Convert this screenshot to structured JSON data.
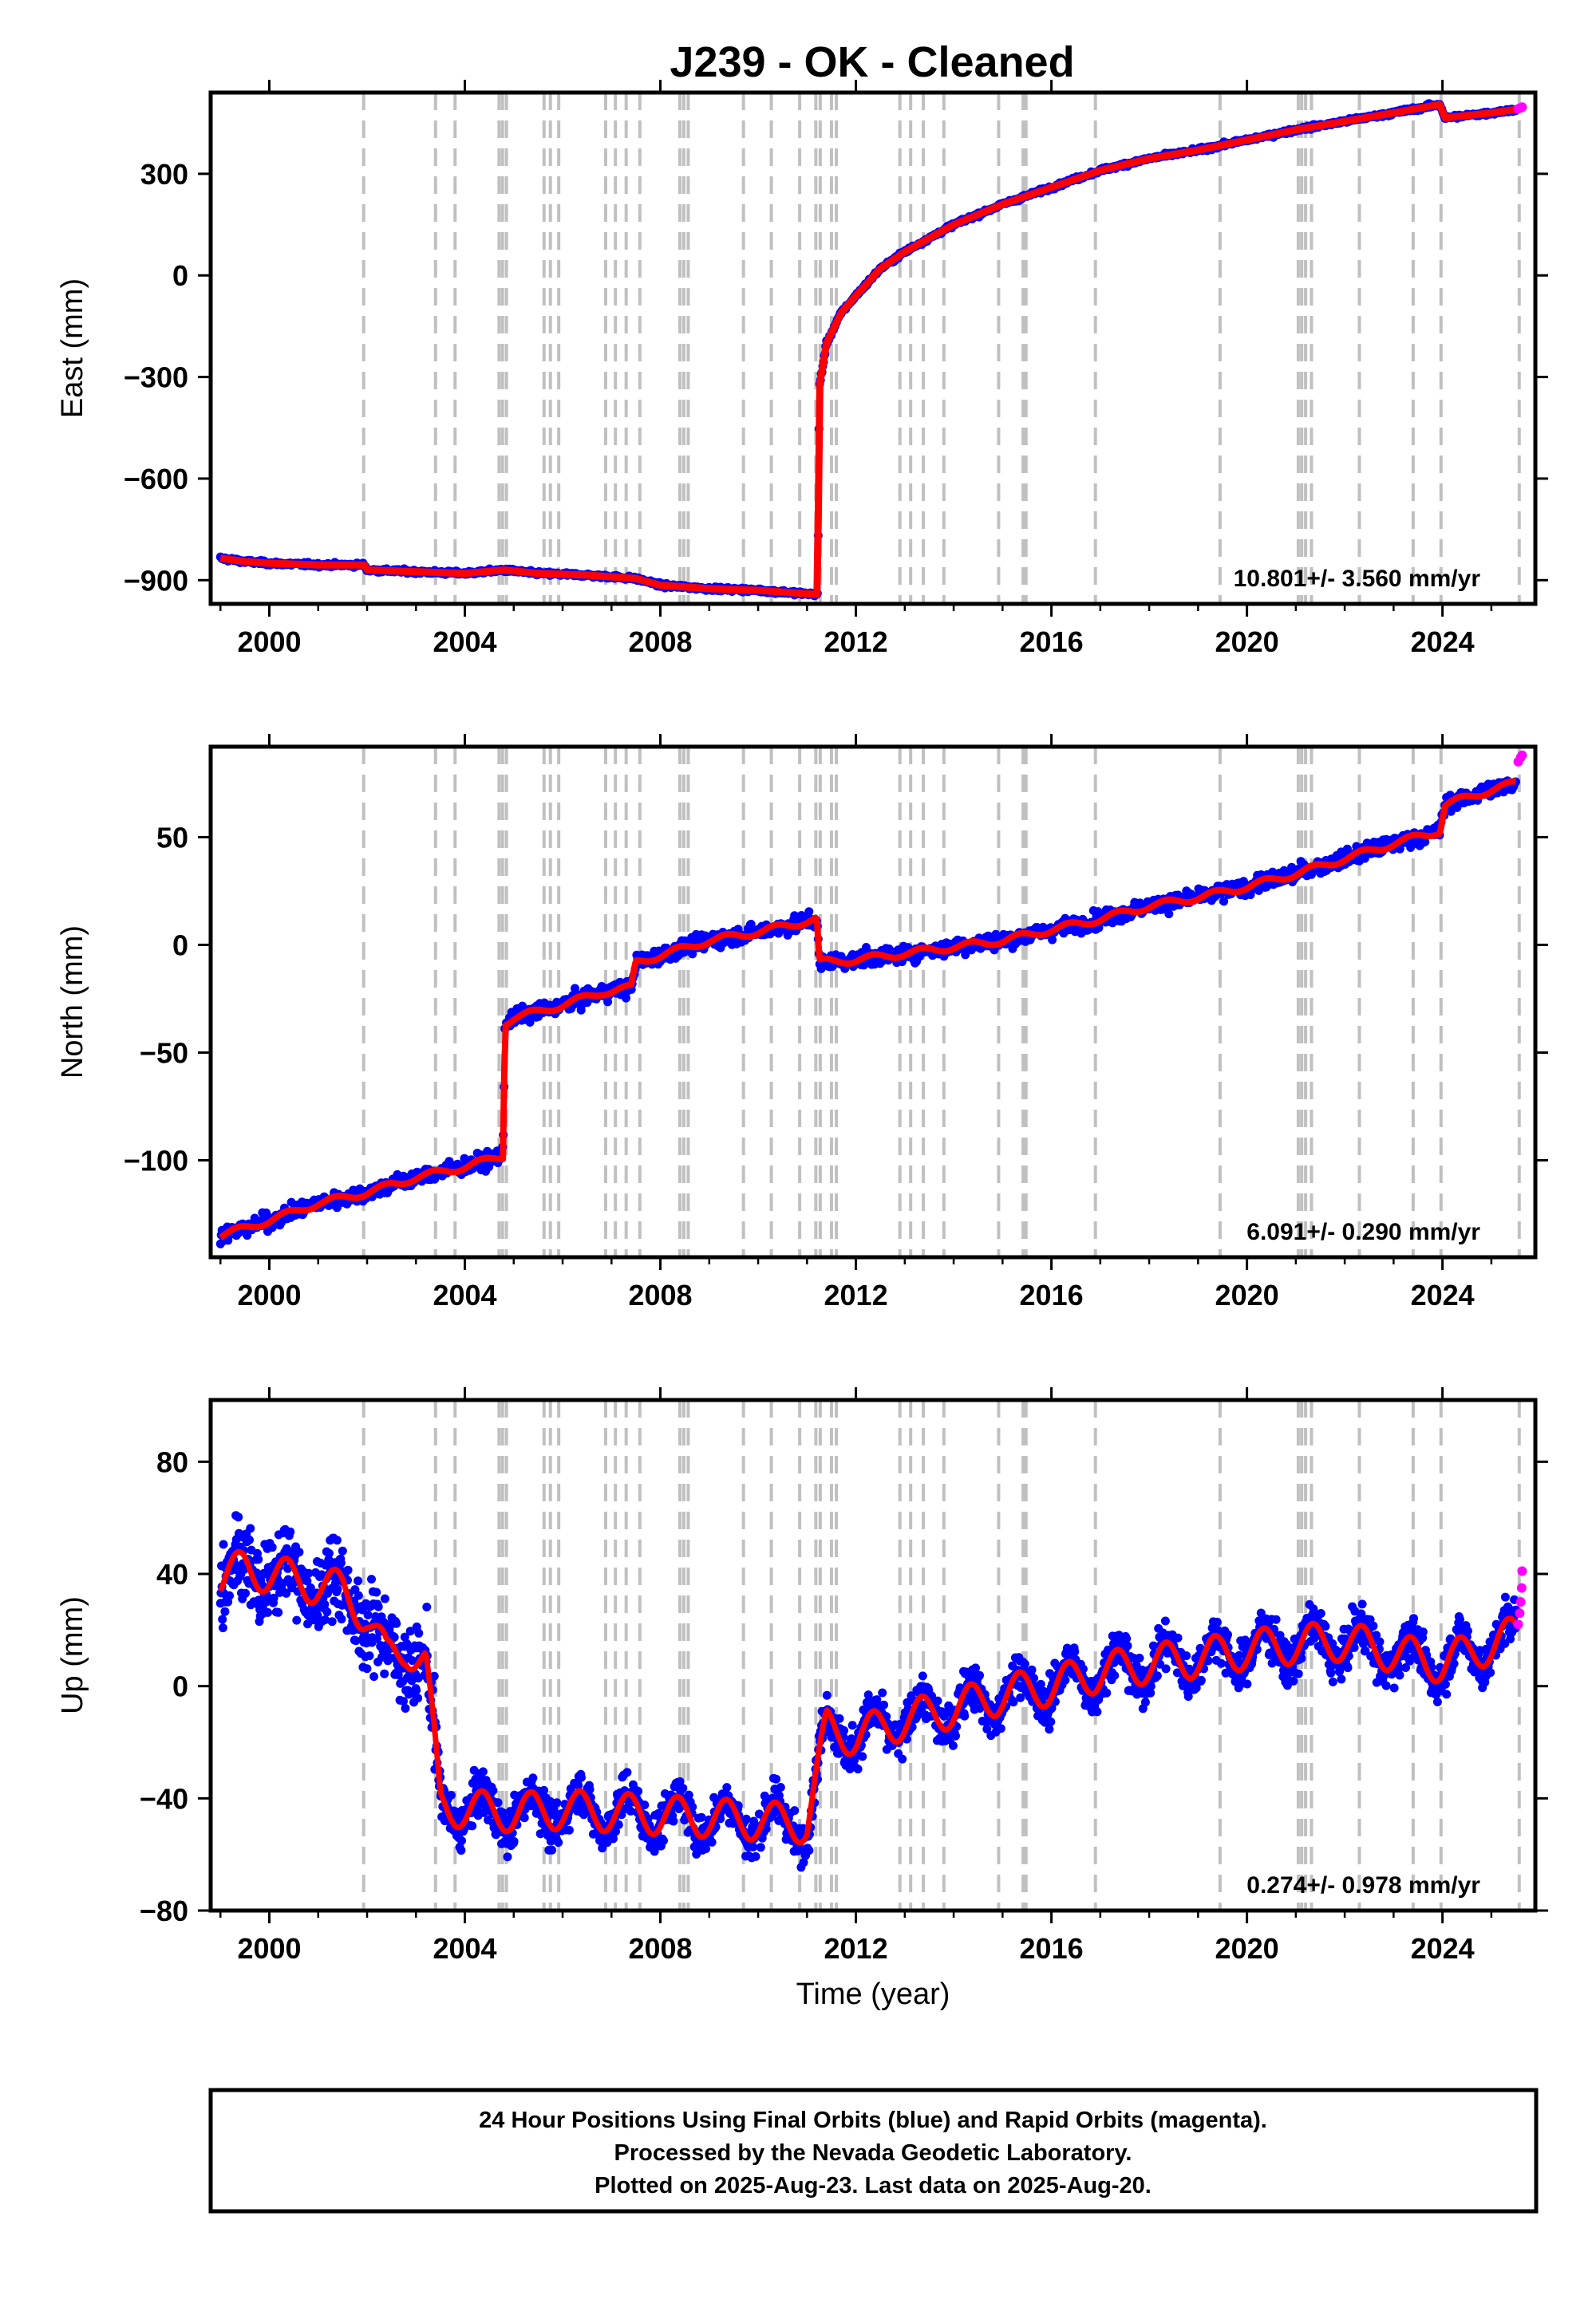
{
  "title": "J239  - OK - Cleaned",
  "footer": {
    "lines": [
      "24 Hour Positions Using Final Orbits (blue) and Rapid Orbits (magenta).",
      "Processed by the Nevada Geodetic Laboratory.",
      "Plotted on 2025-Aug-23. Last data on 2025-Aug-20."
    ]
  },
  "colors": {
    "final_orbits": "#0000ff",
    "rapid_orbits": "#ff00ff",
    "model_fit": "#ff0000",
    "event_lines": "#c0c0c0",
    "frame": "#000000"
  },
  "chart_data": [
    {
      "type": "scatter",
      "panel": "east",
      "ylabel": "East (mm)",
      "xlim": [
        1998.8,
        2025.9
      ],
      "ylim": [
        -970,
        540
      ],
      "xticks": [
        2000,
        2004,
        2008,
        2012,
        2016,
        2020,
        2024
      ],
      "x_tick_labels": [
        "2000",
        "2004",
        "2008",
        "2012",
        "2016",
        "2020",
        "2024"
      ],
      "yticks": [
        300,
        0,
        -300,
        -600,
        -900
      ],
      "y_tick_labels": [
        "300",
        "0",
        "−300",
        "−600",
        "−900"
      ],
      "rate_text": "10.801+/- 3.560 mm/yr",
      "series": [
        {
          "kind": "final",
          "x": [
            1999.0,
            1999.5,
            2000.0,
            2001.0,
            2001.95,
            2002.0,
            2003.0,
            2004.0,
            2004.8,
            2005.5,
            2006.5,
            2007.5,
            2008.0,
            2009.0,
            2010.0,
            2011.0,
            2011.22,
            2011.25,
            2011.4,
            2011.7,
            2012.0,
            2012.5,
            2013.0,
            2014.0,
            2015.0,
            2016.0,
            2017.0,
            2018.0,
            2019.0,
            2020.0,
            2021.0,
            2022.0,
            2023.0,
            2023.95,
            2024.05,
            2025.0,
            2025.5
          ],
          "y": [
            -835,
            -845,
            -850,
            -855,
            -855,
            -870,
            -875,
            -880,
            -870,
            -880,
            -885,
            -895,
            -915,
            -925,
            -930,
            -940,
            -942,
            -330,
            -200,
            -110,
            -60,
            20,
            70,
            150,
            210,
            260,
            310,
            345,
            370,
            400,
            430,
            455,
            480,
            505,
            465,
            480,
            490
          ]
        },
        {
          "kind": "rapid",
          "x": [
            2025.55,
            2025.6,
            2025.63
          ],
          "y": [
            492,
            495,
            497
          ]
        }
      ]
    },
    {
      "type": "scatter",
      "panel": "north",
      "ylabel": "North (mm)",
      "xlim": [
        1998.8,
        2025.9
      ],
      "ylim": [
        -145,
        92
      ],
      "xticks": [
        2000,
        2004,
        2008,
        2012,
        2016,
        2020,
        2024
      ],
      "x_tick_labels": [
        "2000",
        "2004",
        "2008",
        "2012",
        "2016",
        "2020",
        "2024"
      ],
      "yticks": [
        50,
        0,
        -50,
        -100
      ],
      "y_tick_labels": [
        "50",
        "0",
        "−50",
        "−100"
      ],
      "rate_text": "6.091+/- 0.290 mm/yr",
      "series": [
        {
          "kind": "final",
          "x": [
            1999.0,
            2000.0,
            2001.0,
            2002.0,
            2003.0,
            2004.0,
            2004.78,
            2004.82,
            2005.0,
            2006.0,
            2006.8,
            2007.4,
            2007.5,
            2008.0,
            2009.0,
            2010.0,
            2011.2,
            2011.25,
            2012.0,
            2013.0,
            2014.0,
            2015.0,
            2016.0,
            2017.0,
            2018.0,
            2019.0,
            2020.0,
            2021.0,
            2022.0,
            2023.0,
            2023.95,
            2024.05,
            2025.0,
            2025.5
          ],
          "y": [
            -135,
            -128,
            -120,
            -115,
            -108,
            -103,
            -98,
            -36,
            -34,
            -28,
            -22,
            -20,
            -8,
            -5,
            2,
            6,
            12,
            -8,
            -7,
            -4,
            -1,
            2,
            7,
            12,
            18,
            22,
            27,
            33,
            40,
            47,
            53,
            65,
            72,
            75
          ]
        },
        {
          "kind": "rapid",
          "x": [
            2025.55,
            2025.6,
            2025.63
          ],
          "y": [
            85,
            87,
            88
          ]
        }
      ]
    },
    {
      "type": "scatter",
      "panel": "up",
      "ylabel": "Up (mm)",
      "xlabel": "Time (year)",
      "xlim": [
        1998.8,
        2025.9
      ],
      "ylim": [
        -80,
        102
      ],
      "xticks": [
        2000,
        2004,
        2008,
        2012,
        2016,
        2020,
        2024
      ],
      "x_tick_labels": [
        "2000",
        "2004",
        "2008",
        "2012",
        "2016",
        "2020",
        "2024"
      ],
      "yticks": [
        80,
        40,
        0,
        -40,
        -80
      ],
      "y_tick_labels": [
        "80",
        "40",
        "0",
        "−40",
        "−80"
      ],
      "rate_text": "0.274+/- 0.978 mm/yr",
      "series": [
        {
          "kind": "final",
          "x": [
            1999.0,
            1999.5,
            2000.0,
            2000.5,
            2001.0,
            2001.5,
            2002.0,
            2002.4,
            2002.8,
            2003.2,
            2003.5,
            2004.0,
            2005.0,
            2006.0,
            2007.0,
            2008.0,
            2009.0,
            2010.0,
            2011.0,
            2011.4,
            2012.0,
            2013.0,
            2014.0,
            2015.0,
            2016.0,
            2017.0,
            2018.0,
            2019.0,
            2020.0,
            2021.0,
            2022.0,
            2023.0,
            2024.0,
            2025.0,
            2025.5
          ],
          "y": [
            38,
            42,
            40,
            38,
            36,
            34,
            25,
            10,
            14,
            8,
            -42,
            -44,
            -45,
            -44,
            -45,
            -46,
            -47,
            -48,
            -49,
            -15,
            -18,
            -12,
            -8,
            -3,
            0,
            5,
            8,
            10,
            13,
            15,
            16,
            12,
            8,
            15,
            18
          ]
        },
        {
          "kind": "rapid",
          "x": [
            2025.55,
            2025.58,
            2025.6,
            2025.62,
            2025.63
          ],
          "y": [
            22,
            26,
            30,
            35,
            41
          ]
        }
      ]
    }
  ]
}
